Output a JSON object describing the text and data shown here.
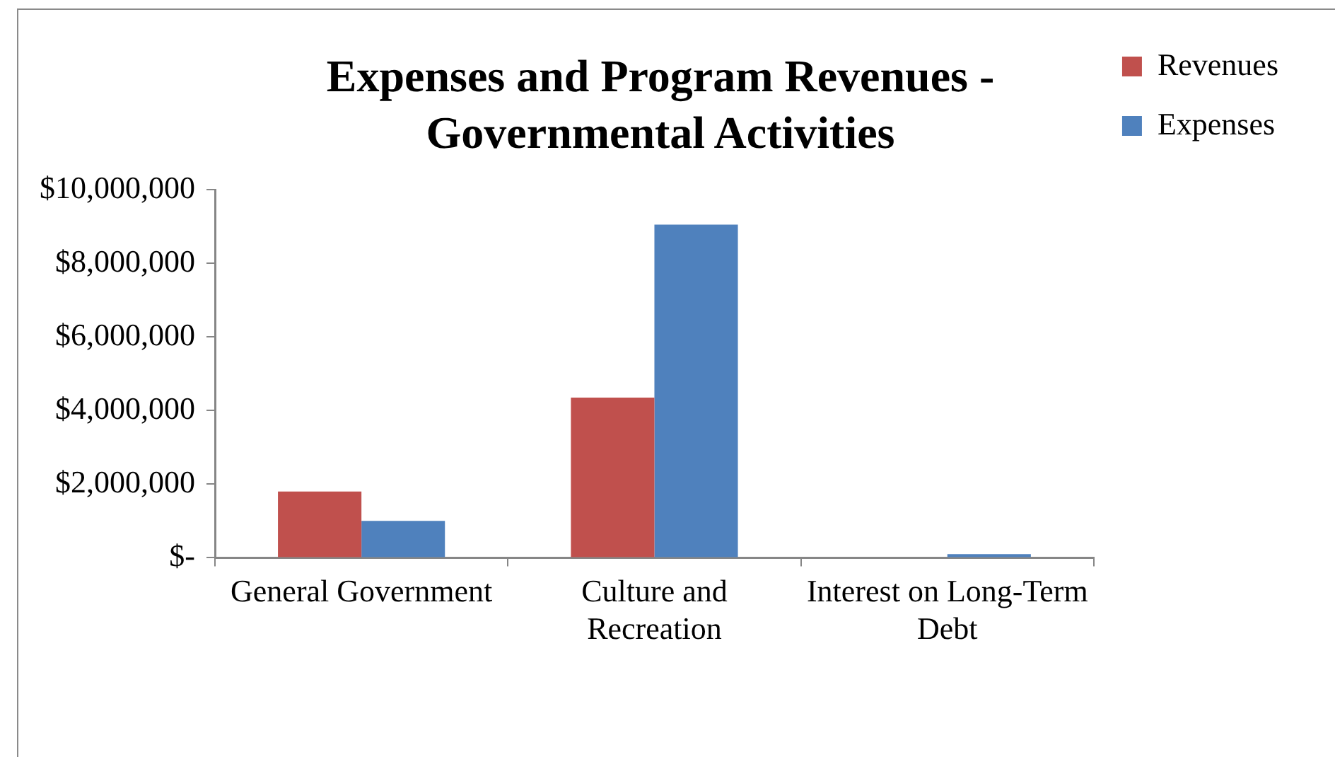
{
  "chart_data": {
    "type": "bar",
    "title": "Expenses and Program Revenues - Governmental Activities",
    "categories": [
      "General Government",
      "Culture and Recreation",
      "Interest on Long-Term Debt"
    ],
    "series": [
      {
        "name": "Revenues",
        "color": "#c0504d",
        "values": [
          1800000,
          4350000,
          0
        ]
      },
      {
        "name": "Expenses",
        "color": "#4f81bd",
        "values": [
          1000000,
          9050000,
          100000
        ]
      }
    ],
    "ylim": [
      0,
      10000000
    ],
    "yticks": [
      {
        "value": 0,
        "label": "$-"
      },
      {
        "value": 2000000,
        "label": "$2,000,000"
      },
      {
        "value": 4000000,
        "label": "$4,000,000"
      },
      {
        "value": 6000000,
        "label": "$6,000,000"
      },
      {
        "value": 8000000,
        "label": "$8,000,000"
      },
      {
        "value": 10000000,
        "label": "$10,000,000"
      }
    ],
    "grid": false,
    "legend": "top right"
  }
}
